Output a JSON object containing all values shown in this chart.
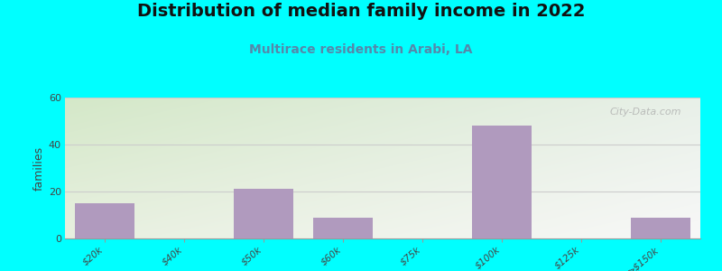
{
  "title": "Distribution of median family income in 2022",
  "subtitle": "Multirace residents in Arabi, LA",
  "categories": [
    "$20k",
    "$40k",
    "$50k",
    "$60k",
    "$75k",
    "$100k",
    "$125k",
    ">$150k"
  ],
  "values": [
    15,
    0,
    21,
    9,
    0,
    48,
    0,
    9
  ],
  "bar_color": "#b09abe",
  "background_outer": "#00ffff",
  "background_inner_topleft": "#d4e8c8",
  "background_inner_topright": "#e8f0e8",
  "background_inner_bottomleft": "#e8f0e0",
  "background_inner_bottomright": "#f8f8f8",
  "ylabel": "families",
  "ylim": [
    0,
    60
  ],
  "yticks": [
    0,
    20,
    40,
    60
  ],
  "title_fontsize": 14,
  "subtitle_fontsize": 10,
  "watermark": "City-Data.com",
  "grid_color": "#cccccc",
  "subtitle_color": "#5588aa"
}
